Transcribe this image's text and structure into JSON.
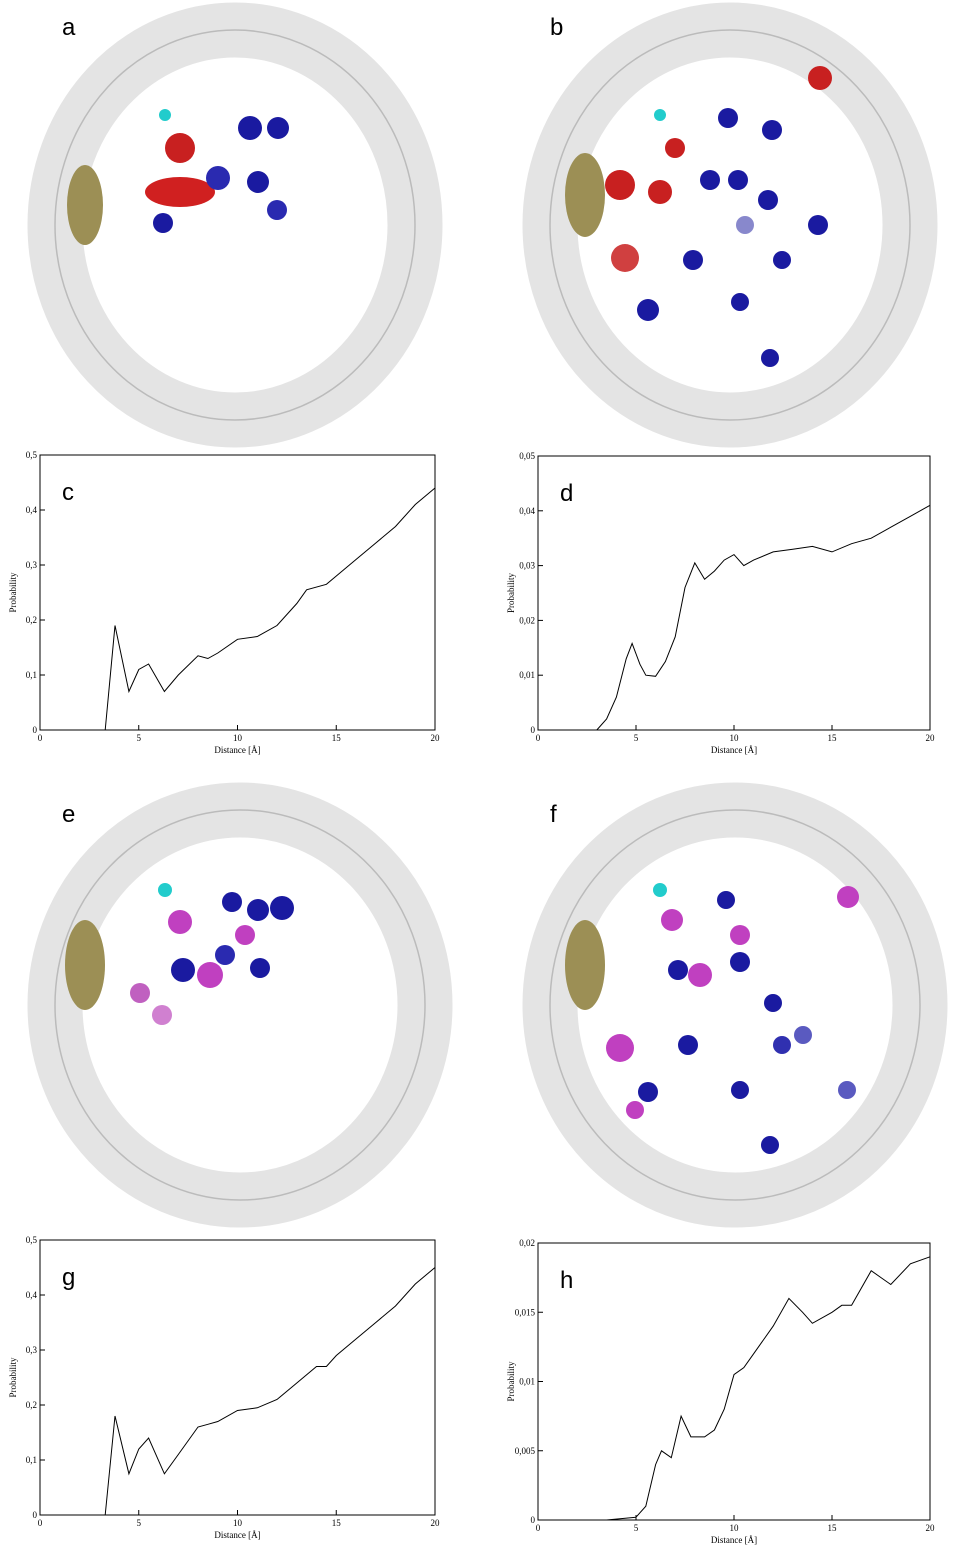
{
  "panel_labels": [
    "a",
    "b",
    "e",
    "f"
  ],
  "chart_data": [
    {
      "type": "line",
      "label": "c",
      "xlabel": "Distance [Å]",
      "ylabel": "Probability",
      "xlim": [
        0,
        20
      ],
      "ylim": [
        0,
        0.5
      ],
      "xticks": [
        0,
        5,
        10,
        15,
        20
      ],
      "yticks": [
        0,
        {
          "value": 0.1,
          "label": "0,1"
        },
        {
          "value": 0.2,
          "label": "0,2"
        },
        {
          "value": 0.3,
          "label": "0,3"
        },
        {
          "value": 0.4,
          "label": "0,4"
        },
        {
          "value": 0.5,
          "label": "0,5"
        }
      ],
      "color": "#000000",
      "x": [
        3.3,
        3.8,
        4.5,
        5,
        5.5,
        6.3,
        7,
        8,
        8.5,
        9,
        10,
        11,
        12,
        13,
        13.5,
        14.5,
        15,
        16,
        17,
        18,
        19,
        20
      ],
      "values": [
        0,
        0.19,
        0.07,
        0.11,
        0.12,
        0.07,
        0.1,
        0.135,
        0.13,
        0.14,
        0.165,
        0.17,
        0.19,
        0.23,
        0.255,
        0.265,
        0.28,
        0.31,
        0.34,
        0.37,
        0.41,
        0.44
      ]
    },
    {
      "type": "line",
      "label": "d",
      "xlabel": "Distance [Å]",
      "ylabel": "Probability",
      "xlim": [
        0,
        20
      ],
      "ylim": [
        0,
        0.05
      ],
      "xticks": [
        0,
        5,
        10,
        15,
        20
      ],
      "yticks": [
        0,
        {
          "value": 0.01,
          "label": "0,01"
        },
        {
          "value": 0.02,
          "label": "0,02"
        },
        {
          "value": 0.03,
          "label": "0,03"
        },
        {
          "value": 0.04,
          "label": "0,04"
        },
        {
          "value": 0.05,
          "label": "0,05"
        }
      ],
      "color": "#000000",
      "x": [
        3,
        3.5,
        4,
        4.5,
        4.8,
        5.2,
        5.5,
        6,
        6.5,
        7,
        7.5,
        8,
        8.5,
        9,
        9.5,
        10,
        10.5,
        11,
        12,
        13,
        14,
        15,
        16,
        17,
        18,
        19,
        20
      ],
      "values": [
        0,
        0.002,
        0.006,
        0.013,
        0.0158,
        0.012,
        0.01,
        0.0098,
        0.0125,
        0.017,
        0.026,
        0.0305,
        0.0275,
        0.029,
        0.031,
        0.032,
        0.03,
        0.031,
        0.0325,
        0.033,
        0.0335,
        0.0325,
        0.034,
        0.035,
        0.037,
        0.039,
        0.041
      ]
    },
    {
      "type": "line",
      "label": "g",
      "xlabel": "Distance [Å]",
      "ylabel": "Probability",
      "xlim": [
        0,
        20
      ],
      "ylim": [
        0,
        0.5
      ],
      "xticks": [
        0,
        5,
        10,
        15,
        20
      ],
      "yticks": [
        0,
        {
          "value": 0.1,
          "label": "0,1"
        },
        {
          "value": 0.2,
          "label": "0,2"
        },
        {
          "value": 0.3,
          "label": "0,3"
        },
        {
          "value": 0.4,
          "label": "0,4"
        },
        {
          "value": 0.5,
          "label": "0,5"
        }
      ],
      "color": "#000000",
      "x": [
        3.3,
        3.8,
        4.5,
        5,
        5.5,
        6.3,
        7,
        8,
        8.5,
        9,
        10,
        11,
        12,
        13,
        14,
        14.5,
        15,
        16,
        17,
        18,
        19,
        20
      ],
      "values": [
        0,
        0.18,
        0.075,
        0.12,
        0.14,
        0.075,
        0.11,
        0.16,
        0.165,
        0.17,
        0.19,
        0.195,
        0.21,
        0.24,
        0.27,
        0.27,
        0.29,
        0.32,
        0.35,
        0.38,
        0.42,
        0.45
      ]
    },
    {
      "type": "line",
      "label": "h",
      "xlabel": "Distance [Å]",
      "ylabel": "Probability",
      "xlim": [
        0,
        20
      ],
      "ylim": [
        0,
        0.02
      ],
      "xticks": [
        0,
        5,
        10,
        15,
        20
      ],
      "yticks": [
        0,
        {
          "value": 0.005,
          "label": "0,005"
        },
        {
          "value": 0.01,
          "label": "0,01"
        },
        {
          "value": 0.015,
          "label": "0,015"
        },
        {
          "value": 0.02,
          "label": "0,02"
        }
      ],
      "color": "#000000",
      "x": [
        3.5,
        5,
        5.5,
        6,
        6.3,
        6.8,
        7.3,
        7.8,
        8.5,
        9,
        9.5,
        10,
        10.5,
        11,
        12,
        12.8,
        13.5,
        14,
        15,
        15.5,
        16,
        17,
        17.5,
        18,
        19,
        20
      ],
      "values": [
        0,
        0.0002,
        0.001,
        0.004,
        0.005,
        0.0045,
        0.0075,
        0.006,
        0.006,
        0.0065,
        0.008,
        0.0105,
        0.011,
        0.012,
        0.014,
        0.016,
        0.015,
        0.0142,
        0.015,
        0.0155,
        0.0155,
        0.018,
        0.0175,
        0.017,
        0.0185,
        0.019
      ]
    }
  ]
}
